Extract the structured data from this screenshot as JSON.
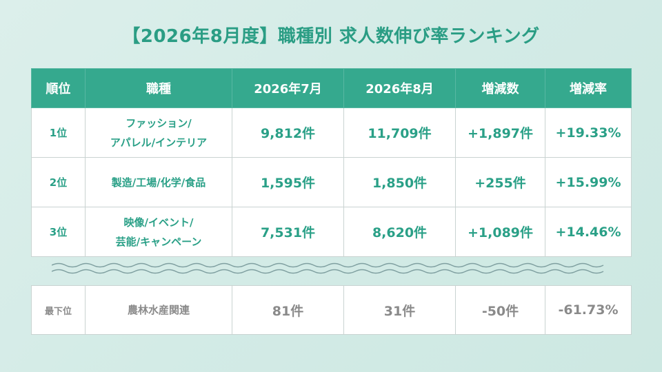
{
  "title": "【2026年8月度】職種別 求人数伸び率ランキング",
  "headers": [
    "順位",
    "職種",
    "2026年7月",
    "2026年8月",
    "増減数",
    "増減率"
  ],
  "rows": [
    {
      "rank": "1位",
      "job_line1": "ファッション/",
      "job_line2": "アパレル/インテリア",
      "jul": "9,812件",
      "aug": "11,709件",
      "diff": "+1,897件",
      "rate": "+19.33%"
    },
    {
      "rank": "2位",
      "job_line1": "製造/工場/化学/食品",
      "job_line2": "",
      "jul": "1,595件",
      "aug": "1,850件",
      "diff": "+255件",
      "rate": "+15.99%"
    },
    {
      "rank": "3位",
      "job_line1": "映像/イベント/",
      "job_line2": "芸能/キャンペーン",
      "jul": "7,531件",
      "aug": "8,620件",
      "diff": "+1,089件",
      "rate": "+14.46%"
    }
  ],
  "bottom_row": {
    "rank": "最下位",
    "job": "農林水産関連",
    "jul": "81件",
    "aug": "31件",
    "diff": "-50件",
    "rate": "-61.73%"
  },
  "colors": {
    "accent": "#35a98e",
    "text_accent": "#2aa087",
    "muted": "#8a8a8a"
  },
  "chart_data": {
    "type": "table",
    "title": "【2026年8月度】職種別 求人数伸び率ランキング",
    "columns": [
      "順位",
      "職種",
      "2026年7月",
      "2026年8月",
      "増減数",
      "増減率"
    ],
    "rows": [
      [
        "1位",
        "ファッション/アパレル/インテリア",
        9812,
        11709,
        1897,
        19.33
      ],
      [
        "2位",
        "製造/工場/化学/食品",
        1595,
        1850,
        255,
        15.99
      ],
      [
        "3位",
        "映像/イベント/芸能/キャンペーン",
        7531,
        8620,
        1089,
        14.46
      ],
      [
        "最下位",
        "農林水産関連",
        81,
        31,
        -50,
        -61.73
      ]
    ]
  }
}
